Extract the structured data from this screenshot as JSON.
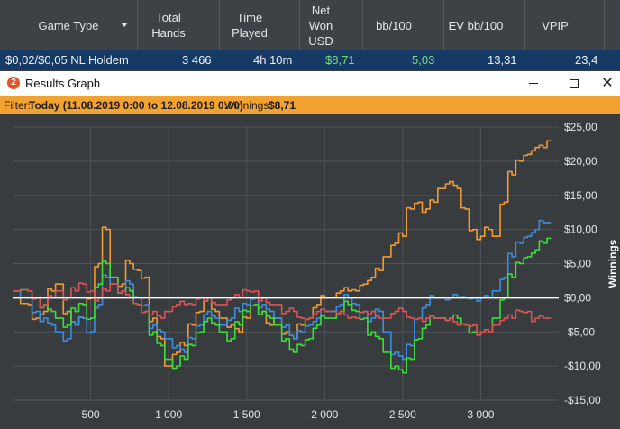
{
  "stats": {
    "columns": [
      {
        "label": "Game Type"
      },
      {
        "label": "Total\nHands"
      },
      {
        "label": "Time\nPlayed"
      },
      {
        "label": "Net\nWon\nUSD"
      },
      {
        "label": "bb/100"
      },
      {
        "label": "EV bb/100"
      },
      {
        "label": "VPIP"
      }
    ],
    "row": {
      "game_type": "$0,02/$0,05 NL Holdem",
      "total_hands": "3 466",
      "time_played": "4h 10m",
      "net_won": "$8,71",
      "bb100": "5,03",
      "ev_bb100": "13,31",
      "vpip": "23,4"
    }
  },
  "window": {
    "icon": "2",
    "title": "Results Graph",
    "minimize": "minimize",
    "maximize": "maximize",
    "close": "✕"
  },
  "filter": {
    "label": "Filter:",
    "range": "Today (11.08.2019 0:00 to 12.08.2019 0:00)",
    "winnings_label": "Winnings:",
    "winnings_value": "$8,71"
  },
  "colors": {
    "orange": "#f09a36",
    "blue": "#3a8ee0",
    "green": "#3ddc3d",
    "red": "#d95555",
    "zero_line": "#ffffff",
    "grid": "#50545a"
  },
  "chart_data": {
    "type": "line",
    "xlabel": "",
    "ylabel": "Winnings",
    "xlim": [
      0,
      3500
    ],
    "ylim": [
      -15,
      25
    ],
    "x_ticks": [
      500,
      1000,
      1500,
      2000,
      2500,
      3000
    ],
    "x_tick_labels": [
      "500",
      "1 000",
      "1 500",
      "2 000",
      "2 500",
      "3 000"
    ],
    "y_ticks": [
      25,
      20,
      15,
      10,
      5,
      0,
      -5,
      -10,
      -15
    ],
    "y_tick_labels": [
      "$25,00",
      "$20,00",
      "$15,00",
      "$10,00",
      "$5,00",
      "$0,00",
      "-$5,00",
      "-$10,00",
      "-$15,00"
    ],
    "grid": true,
    "series": [
      {
        "color": "orange",
        "x": [
          0,
          100,
          150,
          200,
          250,
          300,
          350,
          400,
          450,
          500,
          550,
          600,
          650,
          700,
          750,
          800,
          850,
          900,
          950,
          1000,
          1050,
          1100,
          1150,
          1200,
          1250,
          1300,
          1350,
          1400,
          1450,
          1500,
          1550,
          1600,
          1650,
          1700,
          1750,
          1800,
          1850,
          1900,
          1950,
          2000,
          2050,
          2100,
          2150,
          2200,
          2250,
          2300,
          2350,
          2400,
          2450,
          2500,
          2550,
          2600,
          2650,
          2700,
          2750,
          2800,
          2850,
          2900,
          2950,
          3000,
          3050,
          3100,
          3150,
          3200,
          3250,
          3300,
          3350,
          3400,
          3450
        ],
        "values": [
          0,
          -1,
          -3,
          -2,
          1,
          2,
          -2,
          -4,
          -3,
          0,
          5,
          10,
          3,
          2,
          5,
          4,
          3,
          -3,
          -6,
          -10,
          -8,
          -7,
          -4,
          -2,
          0,
          -2,
          -3,
          -4,
          -5,
          -3,
          0,
          -2,
          -4,
          -3,
          -5,
          -6,
          -4,
          -3,
          -1,
          0,
          0,
          1,
          1,
          1,
          2,
          3,
          4,
          6,
          8,
          9,
          13,
          14,
          13,
          14,
          16,
          17,
          16,
          13,
          10,
          9,
          10,
          9,
          14,
          18,
          20,
          21,
          22,
          22,
          23
        ]
      },
      {
        "color": "blue",
        "x": [
          0,
          100,
          150,
          200,
          250,
          300,
          350,
          400,
          450,
          500,
          550,
          600,
          650,
          700,
          750,
          800,
          850,
          900,
          950,
          1000,
          1050,
          1100,
          1150,
          1200,
          1250,
          1300,
          1350,
          1400,
          1450,
          1500,
          1550,
          1600,
          1650,
          1700,
          1750,
          1800,
          1850,
          1900,
          1950,
          2000,
          2050,
          2100,
          2150,
          2200,
          2250,
          2300,
          2350,
          2400,
          2450,
          2500,
          2550,
          2600,
          2650,
          2700,
          2750,
          2800,
          2850,
          2900,
          2950,
          3000,
          3050,
          3100,
          3150,
          3200,
          3250,
          3300,
          3350,
          3400,
          3450
        ],
        "values": [
          0,
          1,
          -2,
          -3,
          -4,
          -5,
          -6,
          -4,
          -3,
          -5,
          -1,
          3,
          2,
          1,
          2,
          0,
          -1,
          -4,
          -5,
          -6,
          -7,
          -8,
          -6,
          -4,
          -2,
          -3,
          -4,
          -3,
          -2,
          -1,
          0,
          -1,
          -2,
          -3,
          -4,
          -6,
          -5,
          -4,
          -3,
          -2,
          -2,
          -1,
          0,
          -1,
          -2,
          -3,
          -2,
          -5,
          -8,
          -9,
          -7,
          -3,
          -1,
          0,
          0,
          0,
          0,
          0,
          0,
          0,
          0,
          1,
          3,
          6,
          8,
          9,
          10,
          11,
          11
        ]
      },
      {
        "color": "green",
        "x": [
          0,
          100,
          150,
          200,
          250,
          300,
          350,
          400,
          450,
          500,
          550,
          600,
          650,
          700,
          750,
          800,
          850,
          900,
          950,
          1000,
          1050,
          1100,
          1150,
          1200,
          1250,
          1300,
          1350,
          1400,
          1450,
          1500,
          1550,
          1600,
          1650,
          1700,
          1750,
          1800,
          1850,
          1900,
          1950,
          2000,
          2050,
          2100,
          2150,
          2200,
          2250,
          2300,
          2350,
          2400,
          2450,
          2500,
          2550,
          2600,
          2650,
          2700,
          2750,
          2800,
          2850,
          2900,
          2950,
          3000,
          3050,
          3100,
          3150,
          3200,
          3250,
          3300,
          3350,
          3400,
          3450
        ],
        "values": [
          1,
          1,
          0,
          -1,
          -2,
          -3,
          -4,
          -2,
          -1,
          -3,
          2,
          5,
          3,
          1,
          1,
          -1,
          -2,
          -5,
          -7,
          -9,
          -10,
          -9,
          -7,
          -5,
          -3,
          -4,
          -5,
          -6,
          -4,
          -2,
          -1,
          -2,
          -3,
          -4,
          -6,
          -8,
          -7,
          -6,
          -4,
          -3,
          -3,
          -2,
          -1,
          -2,
          -3,
          -5,
          -6,
          -8,
          -10,
          -11,
          -9,
          -6,
          -4,
          -3,
          -3,
          -3,
          -3,
          -4,
          -5,
          -5,
          -5,
          -3,
          0,
          3,
          5,
          6,
          7,
          8,
          8.7
        ]
      },
      {
        "color": "red",
        "x": [
          0,
          100,
          150,
          200,
          250,
          300,
          350,
          400,
          450,
          500,
          550,
          600,
          650,
          700,
          750,
          800,
          850,
          900,
          950,
          1000,
          1050,
          1100,
          1150,
          1200,
          1250,
          1300,
          1350,
          1400,
          1450,
          1500,
          1550,
          1600,
          1650,
          1700,
          1750,
          1800,
          1850,
          1900,
          1950,
          2000,
          2050,
          2100,
          2150,
          2200,
          2250,
          2300,
          2350,
          2400,
          2450,
          2500,
          2550,
          2600,
          2650,
          2700,
          2750,
          2800,
          2850,
          2900,
          2950,
          3000,
          3050,
          3100,
          3150,
          3200,
          3250,
          3300,
          3350,
          3400,
          3450
        ],
        "values": [
          1,
          1,
          0,
          -1,
          0,
          1,
          0,
          1,
          2,
          1,
          0,
          1,
          2,
          1,
          0,
          -1,
          -2,
          -2,
          -3,
          -2,
          -1,
          -1,
          -1,
          0,
          0,
          -1,
          -1,
          0,
          0,
          1,
          1,
          0,
          -1,
          -1,
          -2,
          -2,
          -3,
          -3,
          -2,
          -2,
          -2,
          -2,
          -3,
          -3,
          -2,
          -2,
          -3,
          -3,
          -2,
          -2,
          -3,
          -3,
          -3,
          -3,
          -3,
          -3,
          -4,
          -4,
          -4,
          -5,
          -5,
          -4,
          -3,
          -3,
          -2,
          -2,
          -3,
          -3,
          -3
        ]
      }
    ]
  }
}
